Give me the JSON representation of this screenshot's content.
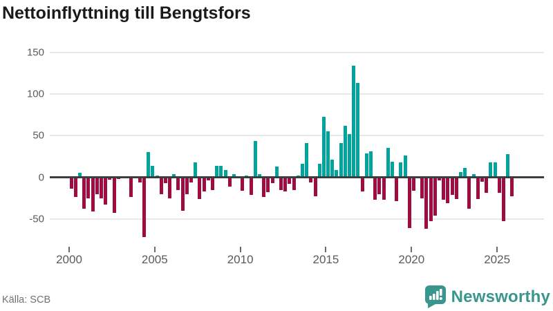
{
  "header": {
    "title": "Nettoinflyttning till Bengtsfors"
  },
  "footer": {
    "source": "Källa: SCB",
    "brand": "Newsworthy"
  },
  "colors": {
    "positive": "#00A49D",
    "negative": "#9E0C42",
    "grid": "#E8E8E8",
    "zero_line": "#3D3D3D",
    "axis_text": "#5A5A5A",
    "title_text": "#1A1A1A",
    "source_text": "#70707A",
    "brand": "#39968E",
    "background": "#FFFFFF"
  },
  "chart_data": {
    "type": "bar",
    "title": "Nettoinflyttning till Bengtsfors",
    "frequency": "quarterly",
    "grid": "horizontal",
    "legend": "none",
    "ylim": [
      -80,
      160
    ],
    "yticks": [
      150,
      100,
      50,
      0,
      -50
    ],
    "xticks": [
      2000,
      2005,
      2010,
      2015,
      2020,
      2025
    ],
    "categories": [
      "2000 Q1",
      "2000 Q2",
      "2000 Q3",
      "2000 Q4",
      "2001 Q1",
      "2001 Q2",
      "2001 Q3",
      "2001 Q4",
      "2002 Q1",
      "2002 Q2",
      "2002 Q3",
      "2002 Q4",
      "2003 Q1",
      "2003 Q2",
      "2003 Q3",
      "2003 Q4",
      "2004 Q1",
      "2004 Q2",
      "2004 Q3",
      "2004 Q4",
      "2005 Q1",
      "2005 Q2",
      "2005 Q3",
      "2005 Q4",
      "2006 Q1",
      "2006 Q2",
      "2006 Q3",
      "2006 Q4",
      "2007 Q1",
      "2007 Q2",
      "2007 Q3",
      "2007 Q4",
      "2008 Q1",
      "2008 Q2",
      "2008 Q3",
      "2008 Q4",
      "2009 Q1",
      "2009 Q2",
      "2009 Q3",
      "2009 Q4",
      "2010 Q1",
      "2010 Q2",
      "2010 Q3",
      "2010 Q4",
      "2011 Q1",
      "2011 Q2",
      "2011 Q3",
      "2011 Q4",
      "2012 Q1",
      "2012 Q2",
      "2012 Q3",
      "2012 Q4",
      "2013 Q1",
      "2013 Q2",
      "2013 Q3",
      "2013 Q4",
      "2014 Q1",
      "2014 Q2",
      "2014 Q3",
      "2014 Q4",
      "2015 Q1",
      "2015 Q2",
      "2015 Q3",
      "2015 Q4",
      "2016 Q1",
      "2016 Q2",
      "2016 Q3",
      "2016 Q4",
      "2017 Q1",
      "2017 Q2",
      "2017 Q3",
      "2017 Q4",
      "2018 Q1",
      "2018 Q2",
      "2018 Q3",
      "2018 Q4",
      "2019 Q1",
      "2019 Q2",
      "2019 Q3",
      "2019 Q4",
      "2020 Q1",
      "2020 Q2",
      "2020 Q3",
      "2020 Q4",
      "2021 Q1",
      "2021 Q2",
      "2021 Q3",
      "2021 Q4",
      "2022 Q1",
      "2022 Q2",
      "2022 Q3",
      "2022 Q4",
      "2023 Q1",
      "2023 Q2",
      "2023 Q3",
      "2023 Q4",
      "2024 Q1",
      "2024 Q2",
      "2024 Q3",
      "2024 Q4",
      "2025 Q1",
      "2025 Q2",
      "2025 Q3",
      "2025 Q4"
    ],
    "values": [
      -14,
      -24,
      5,
      -38,
      -25,
      -41,
      -20,
      -25,
      -33,
      -3,
      -43,
      -2,
      0,
      0,
      -24,
      0,
      -6,
      -72,
      30,
      14,
      2,
      -20,
      -7,
      -25,
      4,
      -15,
      -40,
      -20,
      -6,
      18,
      -26,
      -17,
      -4,
      -15,
      14,
      14,
      9,
      -11,
      4,
      0,
      -16,
      2,
      -21,
      44,
      4,
      -24,
      -18,
      -7,
      13,
      -15,
      -17,
      -8,
      -15,
      2,
      16,
      41,
      -6,
      -23,
      16,
      73,
      55,
      21,
      9,
      41,
      62,
      52,
      134,
      113,
      -17,
      29,
      31,
      -27,
      -20,
      -27,
      35,
      19,
      -29,
      18,
      26,
      -61,
      -16,
      0,
      -25,
      -62,
      -53,
      -46,
      -4,
      -27,
      -31,
      -21,
      -26,
      6,
      11,
      -38,
      4,
      -26,
      -5,
      -19,
      18,
      18,
      -19,
      -53,
      28,
      -23
    ]
  }
}
